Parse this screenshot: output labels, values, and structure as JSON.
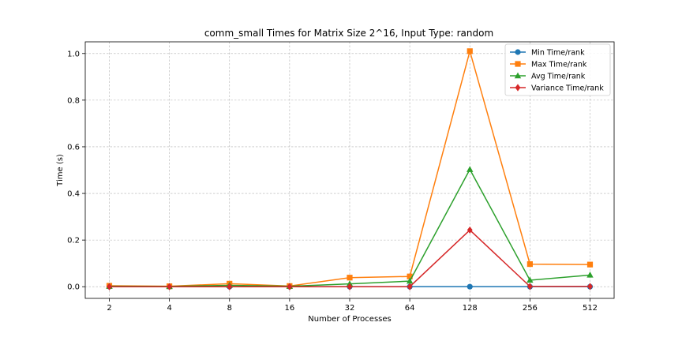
{
  "chart_data": {
    "type": "line",
    "title": "comm_small Times for Matrix Size 2^16, Input Type: random",
    "xlabel": "Number of Processes",
    "ylabel": "Time (s)",
    "categories": [
      "2",
      "4",
      "8",
      "16",
      "32",
      "64",
      "128",
      "256",
      "512"
    ],
    "ylim": [
      -0.05,
      1.05
    ],
    "yticks": [
      "0.0",
      "0.2",
      "0.4",
      "0.6",
      "0.8",
      "1.0"
    ],
    "grid": true,
    "legend_position": "top-right",
    "series": [
      {
        "name": "Min Time/rank",
        "color": "#1f77b4",
        "marker": "circle",
        "values": [
          0.0003,
          0.0002,
          0.0002,
          0.0002,
          0.0002,
          0.0002,
          0.0002,
          0.0002,
          0.0002
        ]
      },
      {
        "name": "Max Time/rank",
        "color": "#ff7f0e",
        "marker": "square",
        "values": [
          0.004,
          0.002,
          0.013,
          0.003,
          0.039,
          0.044,
          1.01,
          0.097,
          0.095
        ]
      },
      {
        "name": "Avg Time/rank",
        "color": "#2ca02c",
        "marker": "triangle",
        "values": [
          0.002,
          0.001,
          0.006,
          0.002,
          0.012,
          0.024,
          0.503,
          0.028,
          0.05
        ]
      },
      {
        "name": "Variance Time/rank",
        "color": "#d62728",
        "marker": "diamond",
        "values": [
          0.0,
          0.0,
          0.0,
          0.0,
          0.0,
          0.0,
          0.243,
          0.001,
          0.001
        ]
      }
    ]
  }
}
